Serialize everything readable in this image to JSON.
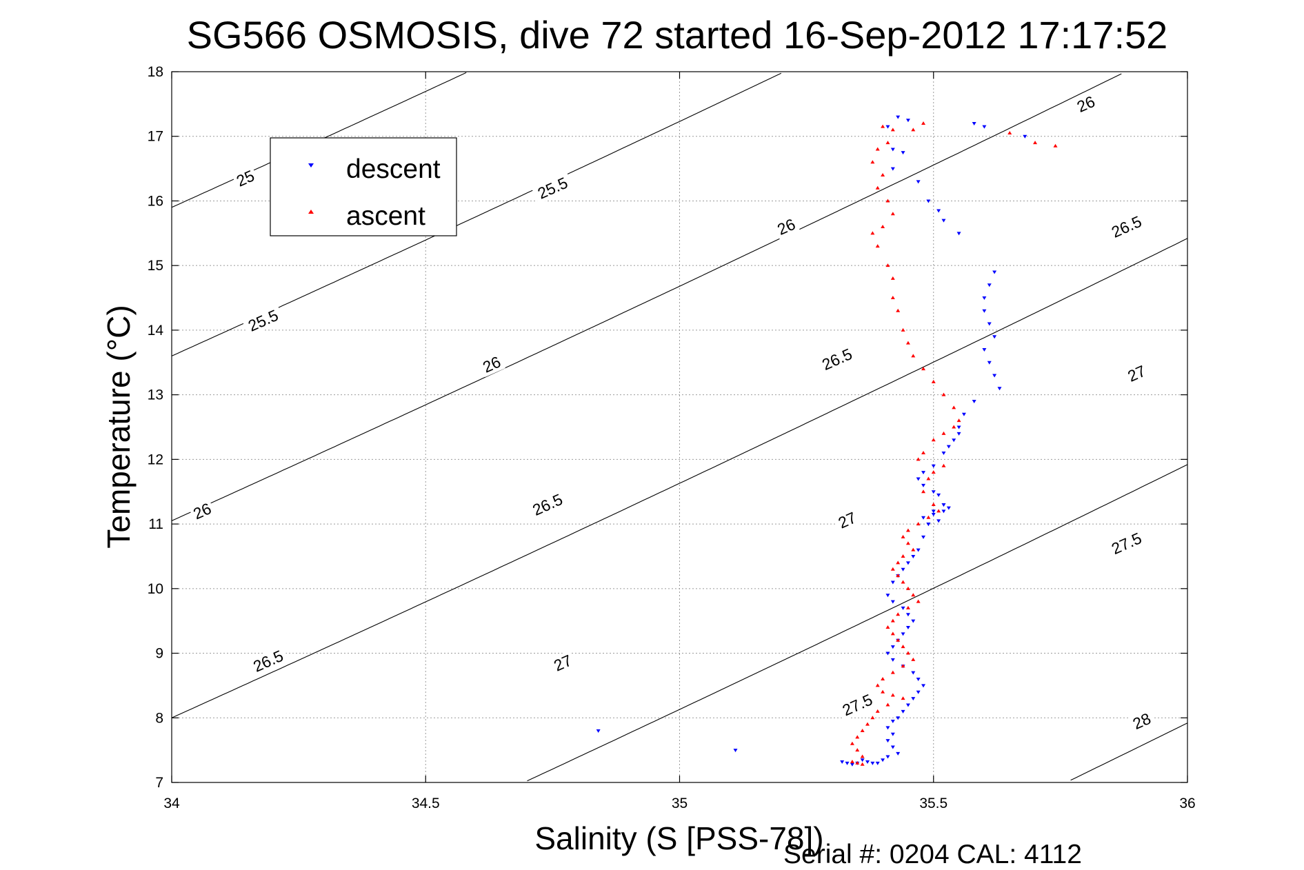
{
  "chart_data": {
    "type": "scatter",
    "title": "SG566 OSMOSIS, dive 72 started 16-Sep-2012 17:17:52",
    "xlabel": "Salinity (S [PSS-78])",
    "ylabel": "Temperature (°C)",
    "xlim": [
      34,
      36
    ],
    "ylim": [
      7,
      18
    ],
    "xticks": [
      "34",
      "34.5",
      "35",
      "35.5",
      "36"
    ],
    "yticks": [
      "7",
      "8",
      "9",
      "10",
      "11",
      "12",
      "13",
      "14",
      "15",
      "16",
      "17",
      "18"
    ],
    "grid": true,
    "legend_position": "top-left",
    "footer": "Serial #: 0204  CAL: 4112",
    "isopycnals": [
      {
        "sigma": 25.0,
        "label": "25"
      },
      {
        "sigma": 25.5,
        "label": "25.5"
      },
      {
        "sigma": 26.0,
        "label": "26"
      },
      {
        "sigma": 26.5,
        "label": "26.5"
      },
      {
        "sigma": 27.0,
        "label": "27"
      },
      {
        "sigma": 27.5,
        "label": "27.5"
      },
      {
        "sigma": 28.0,
        "label": "28"
      }
    ],
    "contour_labels": [
      {
        "text": "25",
        "s": 34.145,
        "t": 16.35
      },
      {
        "text": "25.5",
        "s": 34.18,
        "t": 14.15
      },
      {
        "text": "26",
        "s": 34.06,
        "t": 11.2
      },
      {
        "text": "25.5",
        "s": 34.75,
        "t": 16.2
      },
      {
        "text": "26",
        "s": 34.63,
        "t": 13.47
      },
      {
        "text": "26.5",
        "s": 34.19,
        "t": 8.88
      },
      {
        "text": "26",
        "s": 35.21,
        "t": 15.6
      },
      {
        "text": "26.5",
        "s": 34.74,
        "t": 11.3
      },
      {
        "text": "27",
        "s": 34.77,
        "t": 8.85
      },
      {
        "text": "26.5",
        "s": 35.31,
        "t": 13.55
      },
      {
        "text": "27",
        "s": 35.33,
        "t": 11.06
      },
      {
        "text": "27.5",
        "s": 35.35,
        "t": 8.2
      },
      {
        "text": "26",
        "s": 35.8,
        "t": 17.5
      },
      {
        "text": "26.5",
        "s": 35.88,
        "t": 15.6
      },
      {
        "text": "27",
        "s": 35.9,
        "t": 13.33
      },
      {
        "text": "27.5",
        "s": 35.88,
        "t": 10.7
      },
      {
        "text": "28",
        "s": 35.91,
        "t": 7.95
      }
    ],
    "series": [
      {
        "name": "descent",
        "color": "#0000ff",
        "marker": "triangle-down",
        "x": [
          35.43,
          35.45,
          35.41,
          35.42,
          35.44,
          35.42,
          35.47,
          35.49,
          35.51,
          35.52,
          35.55,
          35.58,
          35.6,
          35.68,
          35.62,
          35.61,
          35.6,
          35.6,
          35.61,
          35.62,
          35.6,
          35.61,
          35.62,
          35.63,
          35.58,
          35.56,
          35.55,
          35.55,
          35.54,
          35.53,
          35.52,
          35.5,
          35.48,
          35.47,
          35.48,
          35.5,
          35.51,
          35.52,
          35.5,
          35.48,
          35.49,
          35.51,
          35.52,
          35.53,
          35.52,
          35.5,
          35.49,
          35.48,
          35.47,
          35.46,
          35.45,
          35.44,
          35.43,
          35.42,
          35.41,
          35.42,
          35.44,
          35.45,
          35.46,
          35.45,
          35.44,
          35.43,
          35.42,
          35.41,
          35.42,
          35.44,
          35.46,
          35.47,
          35.48,
          35.47,
          35.46,
          35.45,
          35.44,
          35.43,
          35.42,
          35.41,
          35.42,
          35.41,
          35.42,
          35.43,
          35.41,
          35.4,
          35.39,
          35.38,
          35.37,
          35.36,
          35.35,
          35.34,
          35.33,
          35.32,
          34.84,
          35.11
        ],
        "y": [
          17.3,
          17.25,
          17.15,
          16.8,
          16.75,
          16.5,
          16.3,
          16.0,
          15.85,
          15.7,
          15.5,
          17.2,
          17.15,
          17.0,
          14.9,
          14.7,
          14.5,
          14.3,
          14.1,
          13.9,
          13.7,
          13.5,
          13.3,
          13.1,
          12.9,
          12.7,
          12.5,
          12.4,
          12.3,
          12.2,
          12.1,
          11.9,
          11.8,
          11.7,
          11.6,
          11.5,
          11.45,
          11.3,
          11.2,
          11.1,
          11.0,
          11.05,
          11.2,
          11.25,
          11.3,
          11.15,
          11.0,
          10.8,
          10.6,
          10.5,
          10.4,
          10.3,
          10.2,
          10.1,
          9.9,
          9.8,
          9.7,
          9.6,
          9.5,
          9.4,
          9.3,
          9.2,
          9.1,
          9.0,
          8.9,
          8.8,
          8.7,
          8.6,
          8.5,
          8.4,
          8.3,
          8.2,
          8.1,
          8.0,
          7.95,
          7.85,
          7.75,
          7.65,
          7.55,
          7.45,
          7.4,
          7.35,
          7.3,
          7.3,
          7.32,
          7.35,
          7.3,
          7.28,
          7.3,
          7.32,
          7.8,
          7.5
        ]
      },
      {
        "name": "ascent",
        "color": "#ff0000",
        "marker": "triangle-up",
        "x": [
          35.4,
          35.42,
          35.41,
          35.39,
          35.38,
          35.4,
          35.39,
          35.41,
          35.42,
          35.4,
          35.38,
          35.39,
          35.41,
          35.42,
          35.42,
          35.43,
          35.44,
          35.45,
          35.46,
          35.48,
          35.5,
          35.52,
          35.54,
          35.55,
          35.54,
          35.52,
          35.5,
          35.48,
          35.47,
          35.52,
          35.5,
          35.49,
          35.48,
          35.5,
          35.51,
          35.49,
          35.47,
          35.45,
          35.44,
          35.45,
          35.46,
          35.44,
          35.43,
          35.42,
          35.43,
          35.44,
          35.45,
          35.46,
          35.47,
          35.45,
          35.43,
          35.42,
          35.41,
          35.42,
          35.43,
          35.44,
          35.45,
          35.46,
          35.44,
          35.42,
          35.4,
          35.39,
          35.4,
          35.42,
          35.44,
          35.41,
          35.39,
          35.38,
          35.37,
          35.36,
          35.35,
          35.34,
          35.35,
          35.36,
          35.65,
          35.7,
          35.74,
          35.46,
          35.48,
          35.36,
          35.35,
          35.34
        ],
        "y": [
          17.15,
          17.1,
          16.9,
          16.8,
          16.6,
          16.4,
          16.2,
          16.0,
          15.8,
          15.6,
          15.5,
          15.3,
          15.0,
          14.8,
          14.5,
          14.3,
          14.0,
          13.8,
          13.6,
          13.4,
          13.2,
          13.0,
          12.8,
          12.6,
          12.5,
          12.4,
          12.3,
          12.1,
          12.0,
          11.9,
          11.8,
          11.7,
          11.5,
          11.3,
          11.2,
          11.1,
          11.0,
          10.9,
          10.8,
          10.7,
          10.6,
          10.5,
          10.4,
          10.3,
          10.2,
          10.1,
          10.0,
          9.9,
          9.8,
          9.7,
          9.6,
          9.5,
          9.4,
          9.3,
          9.2,
          9.1,
          9.0,
          8.9,
          8.8,
          8.7,
          8.6,
          8.5,
          8.4,
          8.35,
          8.3,
          8.2,
          8.1,
          8.0,
          7.9,
          7.8,
          7.7,
          7.6,
          7.5,
          7.4,
          17.05,
          16.9,
          16.85,
          17.1,
          17.2,
          7.28,
          7.3,
          7.32
        ]
      }
    ]
  }
}
